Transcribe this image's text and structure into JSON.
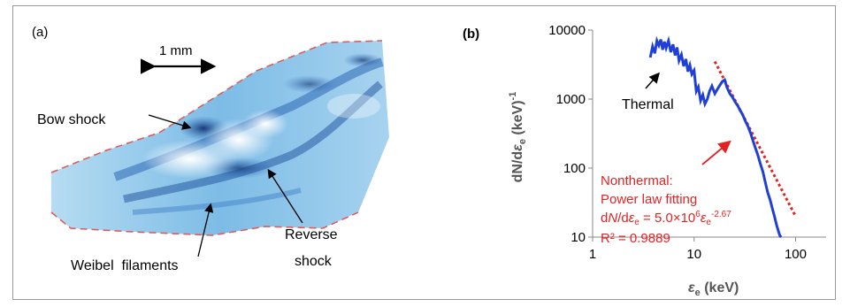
{
  "panel_a": {
    "label": "(a)",
    "scale_bar": "1 mm",
    "annotations": {
      "bow_shock": "Bow shock",
      "reverse_shock_line1": "Reverse",
      "reverse_shock_line2": "shock",
      "weibel": "Weibel  filaments"
    }
  },
  "panel_b": {
    "label": "(b)",
    "thermal_label": "Thermal",
    "nonthermal_lines": [
      "Nonthermal:",
      "Power law fitting"
    ],
    "fit_equation": "dN/dεe = 5.0×10⁶εe^-2.67",
    "fit_coefficient": "5.0×10",
    "fit_coefficient_exp": "6",
    "fit_index": "-2.67",
    "r_squared": "R² = 0.9889",
    "colors": {
      "data": "#1f3fd6",
      "fit": "#e32222",
      "annotation": "#e32222"
    }
  },
  "chart_data": {
    "type": "line",
    "xscale": "log",
    "yscale": "log",
    "xlim": [
      1,
      200
    ],
    "ylim": [
      10,
      10000
    ],
    "xlabel": "εe (keV)",
    "ylabel": "dN/dεe (keV)-1",
    "x_ticks": [
      "1",
      "10",
      "100"
    ],
    "y_ticks": [
      "10",
      "100",
      "1000",
      "10000"
    ],
    "series": [
      {
        "x": [
          3.7,
          3.9,
          4.1,
          4.3,
          4.5,
          4.7,
          4.9,
          5.1,
          5.3,
          5.6,
          5.9,
          6.2,
          6.5,
          6.8,
          7.1,
          7.5,
          7.9,
          8.3,
          8.7,
          9.1,
          9.5,
          10.0,
          10.5,
          11.0,
          11.6,
          12.2,
          12.8,
          13.5,
          14.2,
          15.0,
          16.0,
          17.0,
          18.0,
          19.0,
          20.0,
          21.0,
          22.5,
          24.0,
          25.5,
          27.0,
          28.5,
          30.0,
          32.0,
          34.0,
          36.0,
          38.0,
          40.0,
          42.5,
          45.0,
          47.5,
          50.0,
          53.0,
          56.0,
          59.0,
          62.0,
          65.0,
          68.0,
          70.0,
          72.0
        ],
        "y": [
          4000,
          5800,
          4600,
          7000,
          6000,
          7300,
          5200,
          6800,
          5500,
          7000,
          4800,
          6200,
          4300,
          5600,
          3600,
          4400,
          3000,
          3800,
          2500,
          3100,
          2300,
          2600,
          1300,
          1500,
          950,
          1150,
          850,
          1000,
          1300,
          1550,
          1200,
          1400,
          1600,
          1800,
          1900,
          1500,
          1200,
          1050,
          900,
          800,
          680,
          600,
          480,
          400,
          320,
          250,
          200,
          155,
          115,
          90,
          65,
          45,
          35,
          26,
          20,
          15,
          12,
          10.5,
          10
        ]
      },
      {
        "x": [
          16,
          100
        ],
        "y": [
          3500,
          20
        ]
      }
    ]
  }
}
